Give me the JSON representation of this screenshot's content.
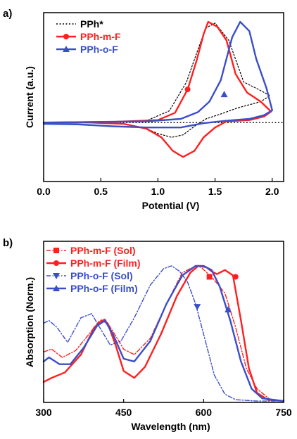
{
  "chart_data": [
    {
      "panel_label": "a)",
      "type": "line",
      "xlabel": "Potential (V)",
      "ylabel": "Current (a.u.)",
      "xlim": [
        0.0,
        2.1
      ],
      "xticks": [
        "0.0",
        "0.5",
        "1.0",
        "1.5",
        "2.0"
      ],
      "ylim": [
        -1.0,
        1.75
      ],
      "legend_position": "top-left",
      "series": [
        {
          "name": "PPh*",
          "color": "#000000",
          "dash": "dotted",
          "marker": "none",
          "x": [
            0.0,
            0.5,
            0.9,
            1.1,
            1.25,
            1.35,
            1.42,
            1.5,
            1.62,
            1.75,
            1.88,
            1.98,
            1.9,
            1.7,
            1.55,
            1.42,
            1.32,
            1.22,
            1.12,
            1.0,
            0.9,
            0.7,
            0.4,
            0.0
          ],
          "y": [
            -0.04,
            -0.04,
            -0.01,
            0.15,
            0.62,
            1.15,
            1.5,
            1.58,
            1.3,
            0.62,
            0.5,
            0.4,
            0.3,
            0.2,
            0.1,
            0.02,
            -0.1,
            -0.24,
            -0.28,
            -0.22,
            -0.14,
            -0.06,
            -0.04,
            -0.04
          ]
        },
        {
          "name": "PPh-m-F",
          "color": "#ff1f1f",
          "dash": "solid",
          "marker": "circle",
          "x": [
            0.0,
            0.6,
            1.0,
            1.15,
            1.26,
            1.34,
            1.4,
            1.44,
            1.52,
            1.6,
            1.68,
            1.78,
            1.9,
            1.99,
            1.93,
            1.8,
            1.6,
            1.5,
            1.4,
            1.32,
            1.22,
            1.13,
            1.03,
            0.9,
            0.7,
            0.4,
            0.0
          ],
          "y": [
            -0.04,
            -0.03,
            0.0,
            0.12,
            0.5,
            0.98,
            1.4,
            1.6,
            1.52,
            1.3,
            0.75,
            0.45,
            0.3,
            0.14,
            0.06,
            0.0,
            -0.02,
            -0.12,
            -0.28,
            -0.5,
            -0.6,
            -0.5,
            -0.28,
            -0.14,
            -0.06,
            -0.04,
            -0.04
          ],
          "marker_points": [
            [
              1.26,
              0.5
            ]
          ]
        },
        {
          "name": "PPh-o-F",
          "color": "#3a4ec9",
          "dash": "solid",
          "marker": "triangle",
          "x": [
            0.0,
            0.9,
            1.2,
            1.35,
            1.45,
            1.55,
            1.65,
            1.72,
            1.8,
            1.86,
            1.95,
            2.0,
            1.93,
            1.8,
            1.6,
            1.4,
            1.2,
            0.9,
            0.6,
            0.3,
            0.0
          ],
          "y": [
            -0.04,
            -0.02,
            0.02,
            0.13,
            0.3,
            0.65,
            1.35,
            1.6,
            1.45,
            1.0,
            0.52,
            0.16,
            0.08,
            0.02,
            -0.01,
            -0.05,
            -0.12,
            -0.12,
            -0.1,
            -0.07,
            -0.06
          ],
          "marker_points": [
            [
              1.58,
              0.42
            ]
          ]
        }
      ]
    },
    {
      "panel_label": "b)",
      "type": "line",
      "xlabel": "Wavelength (nm)",
      "ylabel": "Absorption (Norm.)",
      "xlim": [
        300,
        750
      ],
      "xticks": [
        "300",
        "450",
        "600",
        "750"
      ],
      "ylim": [
        0.0,
        1.18
      ],
      "legend_position": "top-left",
      "series": [
        {
          "name": "PPh-m-F (Sol)",
          "color": "#ff1f1f",
          "dash": "dashdot",
          "marker": "square",
          "x": [
            300,
            315,
            335,
            360,
            385,
            405,
            415,
            430,
            450,
            470,
            500,
            530,
            560,
            585,
            595,
            615,
            640,
            660,
            680,
            700,
            725,
            750
          ],
          "y": [
            0.37,
            0.39,
            0.33,
            0.38,
            0.5,
            0.6,
            0.61,
            0.52,
            0.39,
            0.35,
            0.47,
            0.72,
            0.95,
            1.0,
            0.99,
            0.92,
            0.8,
            0.55,
            0.25,
            0.1,
            0.02,
            0.01
          ],
          "marker_points": [
            [
              611,
              0.92
            ]
          ]
        },
        {
          "name": "PPh-m-F (Film)",
          "color": "#ff1f1f",
          "dash": "solid",
          "marker": "circle",
          "x": [
            300,
            315,
            340,
            370,
            395,
            410,
            420,
            435,
            450,
            470,
            490,
            520,
            550,
            575,
            590,
            605,
            615,
            625,
            640,
            655,
            670,
            685,
            700,
            720,
            750
          ],
          "y": [
            0.15,
            0.18,
            0.22,
            0.35,
            0.55,
            0.6,
            0.58,
            0.42,
            0.23,
            0.18,
            0.26,
            0.5,
            0.78,
            0.95,
            1.0,
            0.99,
            0.96,
            0.94,
            0.97,
            0.93,
            0.6,
            0.25,
            0.07,
            0.02,
            0.01
          ],
          "marker_points": [
            [
              660,
              0.92
            ]
          ]
        },
        {
          "name": "PPh-o-F (Sol)",
          "color": "#3a4ec9",
          "dash": "dashdot",
          "marker": "triangle-down",
          "x": [
            300,
            310,
            325,
            345,
            370,
            390,
            405,
            425,
            445,
            470,
            500,
            525,
            540,
            555,
            570,
            585,
            600,
            620,
            640,
            660,
            700,
            750
          ],
          "y": [
            0.58,
            0.6,
            0.55,
            0.44,
            0.62,
            0.65,
            0.55,
            0.42,
            0.45,
            0.62,
            0.86,
            0.98,
            1.0,
            0.96,
            0.88,
            0.72,
            0.5,
            0.2,
            0.06,
            0.02,
            0.01,
            0.01
          ],
          "marker_points": [
            [
              588,
              0.7
            ]
          ]
        },
        {
          "name": "PPh-o-F (Film)",
          "color": "#3a4ec9",
          "dash": "solid",
          "marker": "triangle",
          "x": [
            300,
            310,
            330,
            350,
            375,
            400,
            415,
            430,
            450,
            470,
            500,
            530,
            560,
            585,
            600,
            615,
            630,
            650,
            670,
            690,
            710,
            750
          ],
          "y": [
            0.3,
            0.33,
            0.28,
            0.28,
            0.4,
            0.56,
            0.6,
            0.5,
            0.32,
            0.3,
            0.45,
            0.72,
            0.93,
            1.0,
            1.0,
            0.97,
            0.85,
            0.6,
            0.3,
            0.1,
            0.03,
            0.01
          ],
          "marker_points": [
            [
              646,
              0.68
            ]
          ]
        }
      ]
    }
  ]
}
